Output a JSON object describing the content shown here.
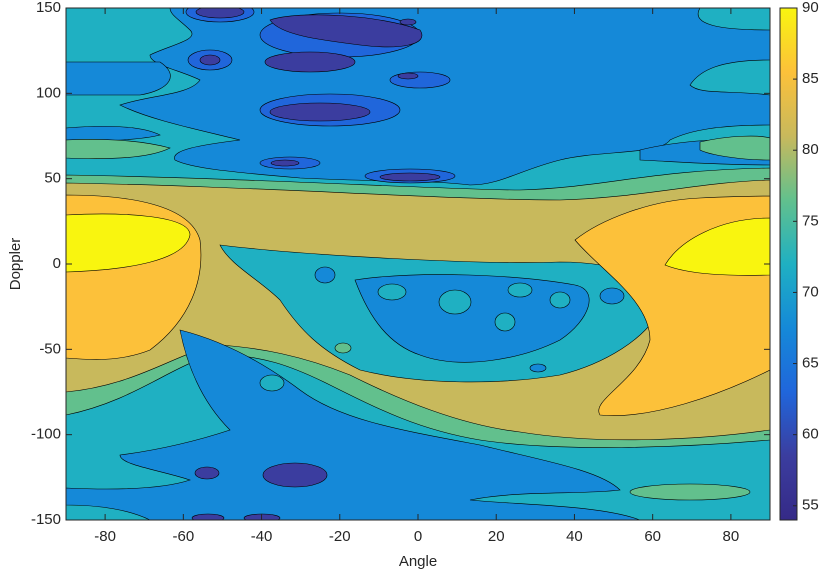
{
  "chart_data": {
    "type": "contour",
    "x_label": "Angle",
    "y_label": "Doppler",
    "xlim": [
      -90,
      90
    ],
    "ylim": [
      -150,
      150
    ],
    "xticks": [
      -80,
      -60,
      -40,
      -20,
      0,
      20,
      40,
      60,
      80
    ],
    "yticks": [
      -150,
      -100,
      -50,
      0,
      50,
      100,
      150
    ],
    "levels": [
      55,
      60,
      65,
      70,
      75,
      80,
      85,
      90
    ],
    "colors": [
      "#352a87",
      "#3b3d9f",
      "#2066db",
      "#1589d8",
      "#1fb0c2",
      "#62c08d",
      "#c8b95c",
      "#fcc13a",
      "#f9f50f"
    ],
    "colorbar": {
      "clim": [
        54,
        90
      ],
      "ticks": [
        55,
        60,
        65,
        70,
        75,
        80,
        85,
        90
      ]
    }
  }
}
